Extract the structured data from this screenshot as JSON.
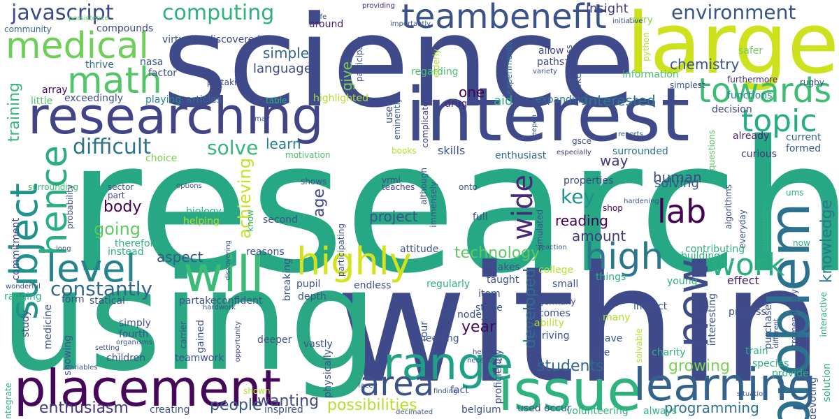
{
  "words": [
    {
      "text": "research",
      "color": "#27a884"
    },
    {
      "text": "within",
      "color": "#3f4a8a"
    },
    {
      "text": "science",
      "color": "#3f4a8a"
    },
    {
      "text": "using",
      "color": "#2aa884"
    },
    {
      "text": "large",
      "color": "#cde11d"
    },
    {
      "text": "researching",
      "color": "#414487"
    },
    {
      "text": "interest",
      "color": "#3e4a89"
    },
    {
      "text": "issue",
      "color": "#2eb37c"
    },
    {
      "text": "placement",
      "color": "#46075a"
    },
    {
      "text": "problem",
      "color": "#2c728e"
    },
    {
      "text": "learning",
      "color": "#33638d"
    },
    {
      "text": "will",
      "color": "#3bbb75"
    },
    {
      "text": "range",
      "color": "#1fa188"
    },
    {
      "text": "subject",
      "color": "#20928c"
    },
    {
      "text": "new",
      "color": "#3e4c8a"
    },
    {
      "text": "teambenefit",
      "color": "#3b528b"
    },
    {
      "text": "medical",
      "color": "#6ece58"
    },
    {
      "text": "math",
      "color": "#52c569"
    },
    {
      "text": "highly",
      "color": "#d2e21b"
    },
    {
      "text": "high",
      "color": "#2a778e"
    },
    {
      "text": "towards",
      "color": "#3dbc74"
    },
    {
      "text": "topic",
      "color": "#25ac82"
    },
    {
      "text": "hence",
      "color": "#29af7f"
    },
    {
      "text": "level",
      "color": "#26828e"
    },
    {
      "text": "area",
      "color": "#3b528b"
    },
    {
      "text": "work",
      "color": "#29af7f"
    },
    {
      "text": "lab",
      "color": "#440154"
    },
    {
      "text": "wide",
      "color": "#482878"
    },
    {
      "text": "constantly",
      "color": "#31678e"
    },
    {
      "text": "difficult",
      "color": "#2c728e"
    },
    {
      "text": "solve",
      "color": "#35b779"
    },
    {
      "text": "javascript",
      "color": "#3e4989"
    },
    {
      "text": "computing",
      "color": "#2db27d"
    },
    {
      "text": "environment",
      "color": "#39568c"
    },
    {
      "text": "enthusiasm",
      "color": "#453781"
    },
    {
      "text": "students",
      "color": "#306a8e"
    },
    {
      "text": "growing",
      "color": "#7ad151"
    },
    {
      "text": "technology",
      "color": "#5ec962"
    },
    {
      "text": "going",
      "color": "#5ec962"
    },
    {
      "text": "body",
      "color": "#440154"
    },
    {
      "text": "aspect",
      "color": "#38588c"
    },
    {
      "text": "people",
      "color": "#38598c"
    },
    {
      "text": "wanting",
      "color": "#404688"
    },
    {
      "text": "possibilities",
      "color": "#b5de2b"
    },
    {
      "text": "programming",
      "color": "#2c728e"
    },
    {
      "text": "training",
      "color": "#35b779"
    },
    {
      "text": "achieving",
      "color": "#c8e020"
    },
    {
      "text": "knowledge",
      "color": "#2a788e"
    },
    {
      "text": "chemistry",
      "color": "#3a548c"
    },
    {
      "text": "key",
      "color": "#21918c"
    },
    {
      "text": "age",
      "color": "#3f4788"
    },
    {
      "text": "amount",
      "color": "#453781"
    },
    {
      "text": "reading",
      "color": "#440154"
    },
    {
      "text": "project",
      "color": "#3b528b"
    },
    {
      "text": "simple",
      "color": "#33638d"
    },
    {
      "text": "languages",
      "color": "#3e4a89"
    },
    {
      "text": "learn",
      "color": "#287d8e"
    },
    {
      "text": "year",
      "color": "#460a5d"
    },
    {
      "text": "developed",
      "color": "#2e6f8e"
    },
    {
      "text": "human",
      "color": "#404688"
    },
    {
      "text": "interested",
      "color": "#2a788e"
    },
    {
      "text": "solving",
      "color": "#3b528b"
    },
    {
      "text": "one",
      "color": "#440154"
    },
    {
      "text": "give",
      "color": "#7ad151"
    },
    {
      "text": "insight",
      "color": "#433e85"
    },
    {
      "text": "way",
      "color": "#46337f"
    },
    {
      "text": "effect",
      "color": "#481b6d"
    },
    {
      "text": "skills",
      "color": "#3b528b"
    },
    {
      "text": "aid",
      "color": "#2fb47c"
    },
    {
      "text": "drug",
      "color": "#482475"
    },
    {
      "text": "expanding",
      "color": "#2d718e"
    },
    {
      "text": "experiments",
      "color": "#2c728e"
    },
    {
      "text": "paths",
      "color": "#3e4c8a"
    },
    {
      "text": "allow",
      "color": "#404588"
    },
    {
      "text": "take",
      "color": "#3b528b"
    },
    {
      "text": "class",
      "color": "#3c4f8a"
    },
    {
      "text": "information",
      "color": "#4ac16d"
    },
    {
      "text": "simplest",
      "color": "#3b528b"
    },
    {
      "text": "furthermore",
      "color": "#472d7b"
    },
    {
      "text": "rugby",
      "color": "#3b528b"
    },
    {
      "text": "safer",
      "color": "#70cf57"
    },
    {
      "text": "python",
      "color": "#b5de2b"
    },
    {
      "text": "carry",
      "color": "#90d743"
    },
    {
      "text": "initiative",
      "color": "#3e4989"
    },
    {
      "text": "providing",
      "color": "#472c7a"
    },
    {
      "text": "importantly",
      "color": "#3b528b"
    },
    {
      "text": "life",
      "color": "#3b528b"
    },
    {
      "text": "compounds",
      "color": "#404688"
    },
    {
      "text": "virtual",
      "color": "#3a548c"
    },
    {
      "text": "discovered",
      "color": "#3f4889"
    },
    {
      "text": "around",
      "color": "#482071"
    },
    {
      "text": "participate",
      "color": "#3d4e8a"
    },
    {
      "text": "persistence",
      "color": "#5ec962"
    },
    {
      "text": "community",
      "color": "#31688e"
    },
    {
      "text": "thrive",
      "color": "#306a8e"
    },
    {
      "text": "nasa",
      "color": "#375a8c"
    },
    {
      "text": "factor",
      "color": "#3e4a89"
    },
    {
      "text": "partaking",
      "color": "#3e4989"
    },
    {
      "text": "array",
      "color": "#46075a"
    },
    {
      "text": "exceedingly",
      "color": "#3b528b"
    },
    {
      "text": "playing",
      "color": "#238a8d"
    },
    {
      "text": "articles",
      "color": "#31688e"
    },
    {
      "text": "table",
      "color": "#2db27d"
    },
    {
      "text": "highlighted",
      "color": "#b2dd2d"
    },
    {
      "text": "regarding",
      "color": "#4ac16d"
    },
    {
      "text": "elderly",
      "color": "#b5de2b"
    },
    {
      "text": "little",
      "color": "#52c569"
    },
    {
      "text": "use",
      "color": "#3e4a89"
    },
    {
      "text": "eminently",
      "color": "#38588c"
    },
    {
      "text": "complicated",
      "color": "#424086"
    },
    {
      "text": "functions",
      "color": "#27808e"
    },
    {
      "text": "decision",
      "color": "#414487"
    },
    {
      "text": "already",
      "color": "#482173"
    },
    {
      "text": "current",
      "color": "#33638d"
    },
    {
      "text": "formed",
      "color": "#38588c"
    },
    {
      "text": "curious",
      "color": "#46337f"
    },
    {
      "text": "questions",
      "color": "#5ec962"
    },
    {
      "text": "deepen",
      "color": "#3b528b"
    },
    {
      "text": "reports",
      "color": "#3b528b"
    },
    {
      "text": "especially",
      "color": "#472d7b"
    },
    {
      "text": "enthusiast",
      "color": "#31688e"
    },
    {
      "text": "gsce",
      "color": "#3b528b"
    },
    {
      "text": "surrounded",
      "color": "#2c728e"
    },
    {
      "text": "commitment",
      "color": "#3f4788"
    },
    {
      "text": "surrounding",
      "color": "#3dbc74"
    },
    {
      "text": "books",
      "color": "#b5de2b"
    },
    {
      "text": "motivation",
      "color": "#4ac16d"
    },
    {
      "text": "choice",
      "color": "#7ad151"
    },
    {
      "text": "may",
      "color": "#3b528b"
    },
    {
      "text": "sector",
      "color": "#3a548c"
    },
    {
      "text": "part",
      "color": "#3b528b"
    },
    {
      "text": "options",
      "color": "#3b528b"
    },
    {
      "text": "teaches",
      "color": "#414487"
    },
    {
      "text": "vrml",
      "color": "#3e4a89"
    },
    {
      "text": "shows",
      "color": "#3b528b"
    },
    {
      "text": "participating",
      "color": "#3b528b"
    },
    {
      "text": "immensely",
      "color": "#3b528b"
    },
    {
      "text": "although",
      "color": "#3b528b"
    },
    {
      "text": "onto",
      "color": "#3b528b"
    },
    {
      "text": "properties",
      "color": "#3f4788"
    },
    {
      "text": "simulated",
      "color": "#3b528b"
    },
    {
      "text": "hardening",
      "color": "#3b528b"
    },
    {
      "text": "shop",
      "color": "#440154"
    },
    {
      "text": "algorithms",
      "color": "#3b528b"
    },
    {
      "text": "everyday",
      "color": "#3b528b"
    },
    {
      "text": "elementary",
      "color": "#2db27d"
    },
    {
      "text": "ums",
      "color": "#2db27d"
    },
    {
      "text": "now",
      "color": "#2db27d"
    },
    {
      "text": "biology",
      "color": "#2db27d"
    },
    {
      "text": "helping",
      "color": "#b5de2b"
    },
    {
      "text": "know",
      "color": "#2db27d"
    },
    {
      "text": "second",
      "color": "#3b528b"
    },
    {
      "text": "full",
      "color": "#3b528b"
    },
    {
      "text": "probability",
      "color": "#3b528b"
    },
    {
      "text": "therefore",
      "color": "#2db27d"
    },
    {
      "text": "instead",
      "color": "#2db27d"
    },
    {
      "text": "long",
      "color": "#3b528b"
    },
    {
      "text": "reasons",
      "color": "#3b528b"
    },
    {
      "text": "discovering",
      "color": "#3b528b"
    },
    {
      "text": "attitude",
      "color": "#3b528b"
    },
    {
      "text": "reaction",
      "color": "#3b528b"
    },
    {
      "text": "contributing",
      "color": "#2db27d"
    },
    {
      "text": "building",
      "color": "#2db27d"
    },
    {
      "text": "college",
      "color": "#b5de2b"
    },
    {
      "text": "makes",
      "color": "#3b528b"
    },
    {
      "text": "things",
      "color": "#2db27d"
    },
    {
      "text": "young",
      "color": "#2db27d"
    },
    {
      "text": "regularly",
      "color": "#2db27d"
    },
    {
      "text": "taught",
      "color": "#3b528b"
    },
    {
      "text": "small",
      "color": "#3b528b"
    },
    {
      "text": "wonderful",
      "color": "#3b528b"
    },
    {
      "text": "pupil",
      "color": "#3b528b"
    },
    {
      "text": "endless",
      "color": "#3b528b"
    },
    {
      "text": "ranging",
      "color": "#2db27d"
    },
    {
      "text": "form",
      "color": "#3b528b"
    },
    {
      "text": "statical",
      "color": "#3b528b"
    },
    {
      "text": "partakeconfident",
      "color": "#3b528b"
    },
    {
      "text": "hardwork",
      "color": "#3b528b"
    },
    {
      "text": "depth",
      "color": "#3b528b"
    },
    {
      "text": "item",
      "color": "#3b528b"
    },
    {
      "text": "germany",
      "color": "#3b528b"
    },
    {
      "text": "comes",
      "color": "#3b528b"
    },
    {
      "text": "stage",
      "color": "#3b528b"
    },
    {
      "text": "ability",
      "color": "#b5de2b"
    },
    {
      "text": "many",
      "color": "#b5de2b"
    },
    {
      "text": "driving",
      "color": "#3b528b"
    },
    {
      "text": "gave",
      "color": "#3b528b"
    },
    {
      "text": "due",
      "color": "#3b528b"
    },
    {
      "text": "study",
      "color": "#3b528b"
    },
    {
      "text": "medicine",
      "color": "#3b528b"
    },
    {
      "text": "simply",
      "color": "#3b528b"
    },
    {
      "text": "fourth",
      "color": "#3b528b"
    },
    {
      "text": "organisms",
      "color": "#3b528b"
    },
    {
      "text": "carrier",
      "color": "#3b528b"
    },
    {
      "text": "gained",
      "color": "#3b528b"
    },
    {
      "text": "setting",
      "color": "#3b528b"
    },
    {
      "text": "showing",
      "color": "#3b528b"
    },
    {
      "text": "opportunity",
      "color": "#3b528b"
    },
    {
      "text": "deeper",
      "color": "#3b528b"
    },
    {
      "text": "vastly",
      "color": "#3b528b"
    },
    {
      "text": "nodejs",
      "color": "#3b528b"
    },
    {
      "text": "tour",
      "color": "#3b528b"
    },
    {
      "text": "needing",
      "color": "#3b528b"
    },
    {
      "text": "physically",
      "color": "#3b528b"
    },
    {
      "text": "proficiently",
      "color": "#3b528b"
    },
    {
      "text": "impact",
      "color": "#3b528b"
    },
    {
      "text": "interesting",
      "color": "#3b528b"
    },
    {
      "text": "process",
      "color": "#3b528b"
    },
    {
      "text": "purchase",
      "color": "#3b528b"
    },
    {
      "text": "tremendously",
      "color": "#3b528b"
    },
    {
      "text": "interactive",
      "color": "#2db27d"
    },
    {
      "text": "train",
      "color": "#2db27d"
    },
    {
      "text": "species",
      "color": "#2db27d"
    },
    {
      "text": "provide",
      "color": "#2db27d"
    },
    {
      "text": "solution",
      "color": "#2db27d"
    },
    {
      "text": "devoting",
      "color": "#3b528b"
    },
    {
      "text": "different",
      "color": "#3b528b"
    },
    {
      "text": "solvable",
      "color": "#b5de2b"
    },
    {
      "text": "charity",
      "color": "#2db27d"
    },
    {
      "text": "situation",
      "color": "#3b528b"
    },
    {
      "text": "either",
      "color": "#3b528b"
    },
    {
      "text": "help",
      "color": "#3b528b"
    },
    {
      "text": "necessary",
      "color": "#3b528b"
    },
    {
      "text": "children",
      "color": "#3b528b"
    },
    {
      "text": "teamwork",
      "color": "#3b528b"
    },
    {
      "text": "variables",
      "color": "#3b528b"
    },
    {
      "text": "shown",
      "color": "#b5de2b"
    },
    {
      "text": "creating",
      "color": "#3b528b"
    },
    {
      "text": "integrate",
      "color": "#2db27d"
    },
    {
      "text": "inspired",
      "color": "#3b528b"
    },
    {
      "text": "face",
      "color": "#3b528b"
    },
    {
      "text": "finding",
      "color": "#3b528b"
    },
    {
      "text": "fact",
      "color": "#3b528b"
    },
    {
      "text": "decimated",
      "color": "#3b528b"
    },
    {
      "text": "belgium",
      "color": "#3b528b"
    },
    {
      "text": "used",
      "color": "#3b528b"
    },
    {
      "text": "occur",
      "color": "#3b528b"
    },
    {
      "text": "volunteering",
      "color": "#2db27d"
    },
    {
      "text": "always",
      "color": "#2db27d"
    },
    {
      "text": "variety",
      "color": "#3b528b"
    },
    {
      "text": "breaking",
      "color": "#3b528b"
    }
  ]
}
